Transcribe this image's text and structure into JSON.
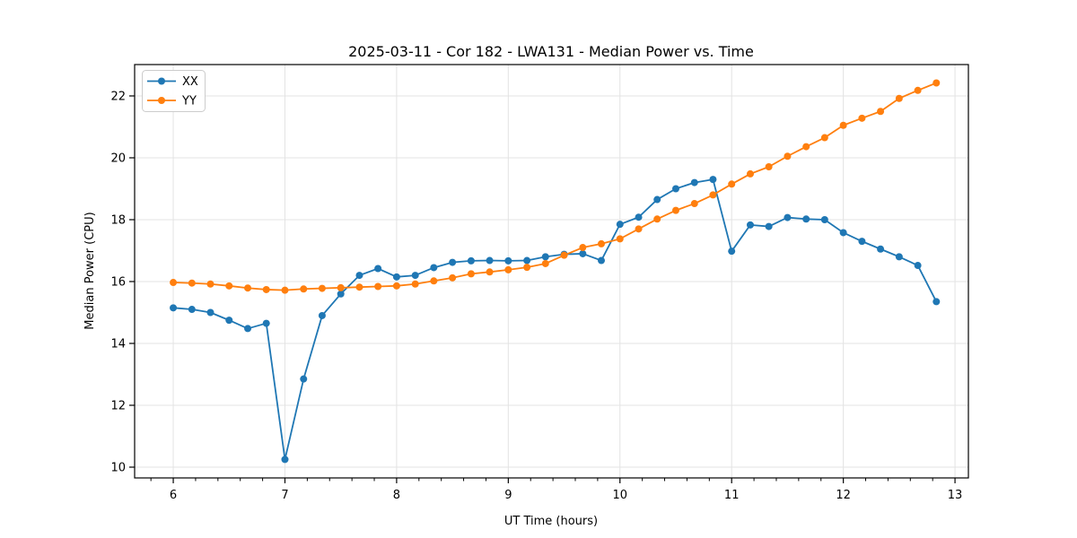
{
  "chart_data": {
    "type": "line",
    "title": "2025-03-11 - Cor 182 - LWA131 - Median Power vs. Time",
    "xlabel": "UT Time (hours)",
    "ylabel": "Median Power (CPU)",
    "xlim": [
      5.654,
      13.12
    ],
    "ylim": [
      9.652,
      23.014
    ],
    "xticks": [
      6,
      7,
      8,
      9,
      10,
      11,
      12,
      13
    ],
    "yticks": [
      10,
      12,
      14,
      16,
      18,
      20,
      22
    ],
    "x_minor_tick_step": 0.2,
    "grid": "major",
    "grid_color": "#e3e3e3",
    "background_color": "#ffffff",
    "legend_position": "upper-left",
    "x": [
      6.0,
      6.167,
      6.333,
      6.5,
      6.667,
      6.833,
      7.0,
      7.167,
      7.333,
      7.5,
      7.667,
      7.833,
      8.0,
      8.167,
      8.333,
      8.5,
      8.667,
      8.833,
      9.0,
      9.167,
      9.333,
      9.5,
      9.667,
      9.833,
      10.0,
      10.167,
      10.333,
      10.5,
      10.667,
      10.833,
      11.0,
      11.167,
      11.333,
      11.5,
      11.667,
      11.833,
      12.0,
      12.167,
      12.333,
      12.5,
      12.667,
      12.833
    ],
    "series": [
      {
        "name": "XX",
        "color": "#1f77b4",
        "marker": "circle",
        "values": [
          15.15,
          15.1,
          15.0,
          14.75,
          14.48,
          14.65,
          10.25,
          12.85,
          14.9,
          15.6,
          16.2,
          16.42,
          16.15,
          16.2,
          16.45,
          16.62,
          16.67,
          16.68,
          16.67,
          16.68,
          16.8,
          16.88,
          16.9,
          16.68,
          17.85,
          18.08,
          18.65,
          19.0,
          19.2,
          19.3,
          16.98,
          17.83,
          17.78,
          18.07,
          18.02,
          18.0,
          17.58,
          17.3,
          17.05,
          16.8,
          16.52,
          15.35
        ]
      },
      {
        "name": "YY",
        "color": "#ff7f0e",
        "marker": "circle",
        "values": [
          15.97,
          15.95,
          15.92,
          15.86,
          15.79,
          15.74,
          15.72,
          15.76,
          15.78,
          15.8,
          15.82,
          15.84,
          15.86,
          15.92,
          16.02,
          16.12,
          16.25,
          16.31,
          16.38,
          16.46,
          16.58,
          16.85,
          17.1,
          17.22,
          17.38,
          17.7,
          18.02,
          18.3,
          18.52,
          18.8,
          19.15,
          19.48,
          19.71,
          20.05,
          20.36,
          20.65,
          21.05,
          21.28,
          21.5,
          21.92,
          22.18,
          22.42
        ]
      }
    ]
  }
}
